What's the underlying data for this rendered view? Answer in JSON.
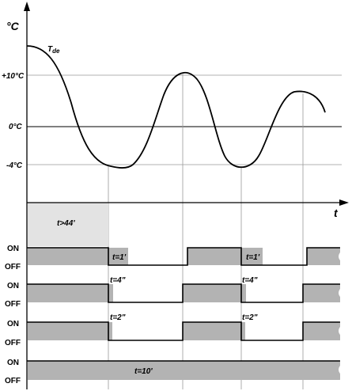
{
  "axes": {
    "y_unit": "°C",
    "x_unit": "t",
    "curve_label": "T",
    "curve_label_sub": "de",
    "y_ticks": [
      "+10°C",
      "0°C",
      "-4°C"
    ]
  },
  "timers": {
    "initial_delay": "t>44'",
    "on_label": "ON",
    "off_label": "OFF",
    "row1_pulse": "t=1'",
    "row2_pulse": "t=4\"",
    "row3_pulse": "t=2\"",
    "row4_pulse": "t=10'"
  }
}
